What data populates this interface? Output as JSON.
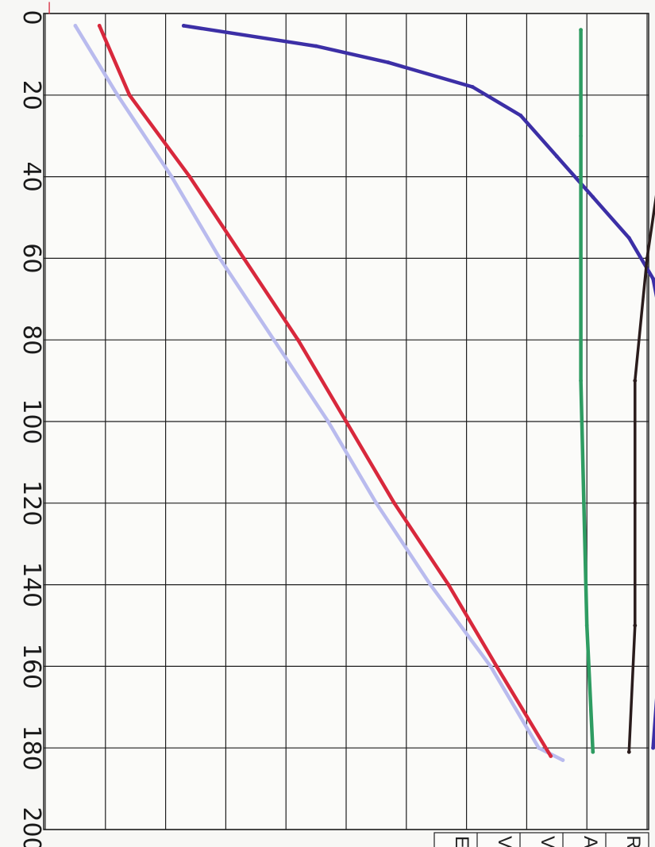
{
  "chart_data": {
    "type": "line",
    "orientation": "rotated-90",
    "title": "",
    "xlabel": "",
    "ylabel": "",
    "depth_axis": {
      "ticks": [
        0,
        20,
        40,
        60,
        80,
        100,
        120,
        140,
        160,
        180,
        200
      ],
      "range": [
        0,
        200
      ]
    },
    "grid": true,
    "series": [
      {
        "color": "#b9bbee",
        "points": [
          [
            3,
            0.5
          ],
          [
            20,
            1.2
          ],
          [
            40,
            2.1
          ],
          [
            60,
            2.9
          ],
          [
            80,
            3.8
          ],
          [
            100,
            4.7
          ],
          [
            120,
            5.5
          ],
          [
            140,
            6.4
          ],
          [
            160,
            7.4
          ],
          [
            180,
            8.2
          ],
          [
            183,
            8.6
          ]
        ]
      },
      {
        "color": "#d8283c",
        "points": [
          [
            3,
            0.9
          ],
          [
            20,
            1.4
          ],
          [
            40,
            2.4
          ],
          [
            60,
            3.3
          ],
          [
            80,
            4.2
          ],
          [
            100,
            5.0
          ],
          [
            120,
            5.8
          ],
          [
            140,
            6.7
          ],
          [
            160,
            7.5
          ],
          [
            182,
            8.4
          ]
        ]
      },
      {
        "color": "#3c2fa6",
        "points": [
          [
            3,
            2.3
          ],
          [
            8,
            4.5
          ],
          [
            12,
            5.7
          ],
          [
            18,
            7.1
          ],
          [
            25,
            7.9
          ],
          [
            35,
            8.5
          ],
          [
            45,
            9.1
          ],
          [
            55,
            9.7
          ],
          [
            65,
            10.1
          ],
          [
            80,
            10.3
          ],
          [
            100,
            10.3
          ],
          [
            120,
            10.3
          ],
          [
            140,
            10.3
          ],
          [
            160,
            10.2
          ],
          [
            180,
            10.1
          ]
        ]
      },
      {
        "color": "#2e9c62",
        "points": [
          [
            4,
            8.9
          ],
          [
            30,
            8.9
          ],
          [
            60,
            8.9
          ],
          [
            90,
            8.9
          ],
          [
            120,
            8.95
          ],
          [
            150,
            9.0
          ],
          [
            181,
            9.1
          ]
        ]
      },
      {
        "color": "#2a1c1c",
        "points": [
          [
            3,
            10.5
          ],
          [
            30,
            10.3
          ],
          [
            60,
            10.0
          ],
          [
            90,
            9.8
          ],
          [
            120,
            9.8
          ],
          [
            150,
            9.8
          ],
          [
            181,
            9.7
          ]
        ]
      }
    ],
    "legend": {
      "placement": "bottom-right",
      "entries": [
        "E",
        "V",
        "V",
        "A",
        "R"
      ]
    }
  },
  "top_mark": "|"
}
